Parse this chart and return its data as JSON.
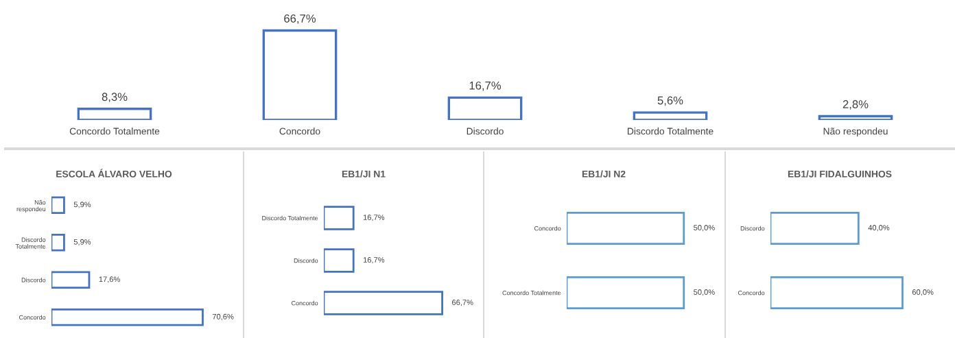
{
  "chart_data": [
    {
      "type": "bar",
      "categories": [
        "Concordo Totalmente",
        "Concordo",
        "Discordo",
        "Discordo Totalmente",
        "Não respondeu"
      ],
      "values": [
        8.3,
        66.7,
        16.7,
        5.6,
        2.8
      ],
      "value_labels": [
        "8,3%",
        "66,7%",
        "16,7%",
        "5,6%",
        "2,8%"
      ],
      "color": "#4472c4",
      "tick_labels": "x"
    },
    {
      "type": "bar",
      "orientation": "horizontal",
      "title": "ESCOLA ÁLVARO VELHO",
      "categories": [
        "Não\nrespondeu",
        "Discordo\nTotalmente",
        "Discordo",
        "Concordo"
      ],
      "values": [
        5.9,
        5.9,
        17.6,
        70.6
      ],
      "value_labels": [
        "5,9%",
        "5,9%",
        "17,6%",
        "70,6%"
      ],
      "color": "#4472c4",
      "tick_labels": "y"
    },
    {
      "type": "bar",
      "orientation": "horizontal",
      "title": "EB1/JI N1",
      "categories": [
        "Discordo Totalmente",
        "Discordo",
        "Concordo"
      ],
      "values": [
        16.7,
        16.7,
        66.7
      ],
      "value_labels": [
        "16,7%",
        "16,7%",
        "66,7%"
      ],
      "color": "#4472c4",
      "tick_labels": "y"
    },
    {
      "type": "bar",
      "orientation": "horizontal",
      "title": "EB1/JI N2",
      "categories": [
        "Concordo",
        "Concordo Totalmente"
      ],
      "values": [
        50.0,
        50.0
      ],
      "value_labels": [
        "50,0%",
        "50,0%"
      ],
      "color": "#5b9bd5",
      "tick_labels": "y"
    },
    {
      "type": "bar",
      "orientation": "horizontal",
      "title": "EB1/JI FIDALGUINHOS",
      "categories": [
        "Discordo",
        "Concordo"
      ],
      "values": [
        40.0,
        60.0
      ],
      "value_labels": [
        "40,0%",
        "60,0%"
      ],
      "color": "#5b9bd5",
      "tick_labels": "y"
    }
  ]
}
